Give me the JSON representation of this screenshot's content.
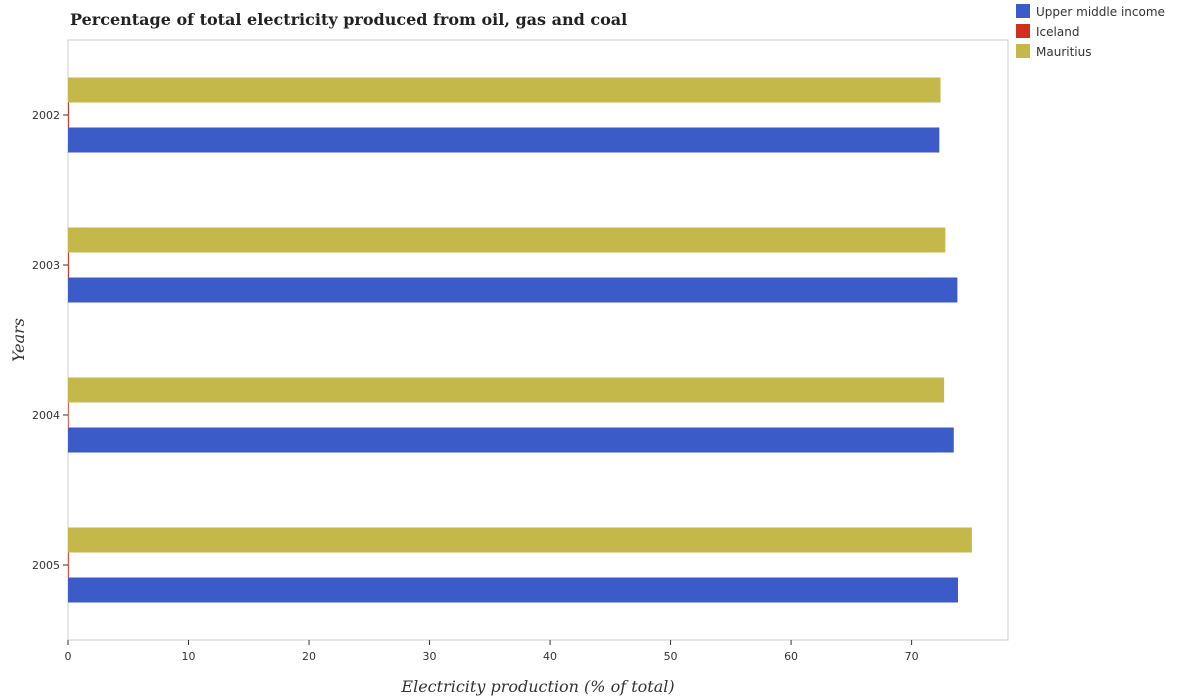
{
  "chart_data": {
    "type": "bar",
    "orientation": "horizontal",
    "title": "Percentage of total electricity produced from oil, gas and coal",
    "xlabel": "Electricity production (% of total)",
    "ylabel": "Years",
    "xlim": [
      0,
      78
    ],
    "xticks": [
      "0",
      "10",
      "20",
      "30",
      "40",
      "50",
      "60",
      "70"
    ],
    "categories": [
      "2002",
      "2003",
      "2004",
      "2005"
    ],
    "series": [
      {
        "name": "Upper middle income",
        "color": "#3b5bc8",
        "values": [
          72.3,
          73.8,
          73.5,
          73.85
        ]
      },
      {
        "name": "Iceland",
        "color": "#d32f1e",
        "values": [
          0.08,
          0.08,
          0.06,
          0.07
        ]
      },
      {
        "name": "Mauritius",
        "color": "#c4b84a",
        "values": [
          72.4,
          72.8,
          72.7,
          75.0
        ]
      }
    ],
    "legend_position": "top-right",
    "grid": false
  }
}
